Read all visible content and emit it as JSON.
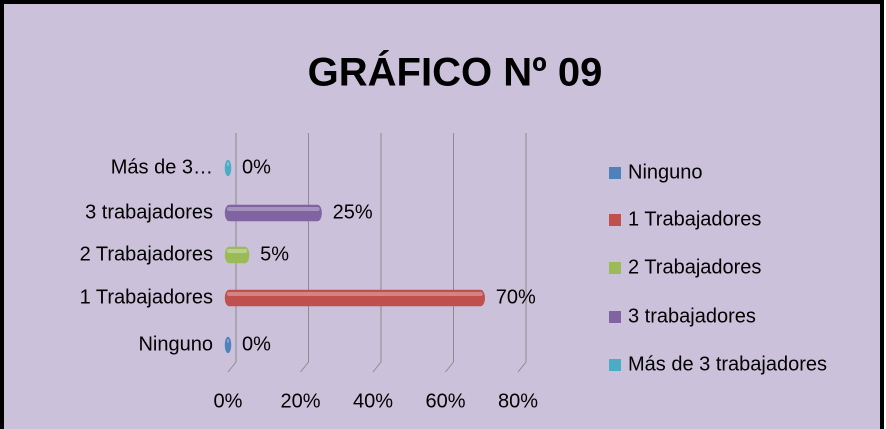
{
  "chart_data": {
    "type": "hbar",
    "title": "GRÁFICO Nº 09",
    "categories": [
      "Ninguno",
      "1 Trabajadores",
      "2 Trabajadores",
      "3 trabajadores",
      "Más de 3…"
    ],
    "values": [
      0,
      70,
      5,
      25,
      0
    ],
    "value_labels": [
      "0%",
      "70%",
      "5%",
      "25%",
      "0%"
    ],
    "colors": [
      "#4f81bd",
      "#c0504d",
      "#9bbb59",
      "#8064a2",
      "#4bacc6"
    ],
    "legend": [
      "Ninguno",
      "1 Trabajadores",
      "2 Trabajadores",
      "3 trabajadores",
      "Más de 3 trabajadores"
    ],
    "xlim": [
      0,
      80
    ],
    "xticks": [
      {
        "value": 0,
        "label": "0%"
      },
      {
        "value": 20,
        "label": "20%"
      },
      {
        "value": 40,
        "label": "40%"
      },
      {
        "value": 60,
        "label": "60%"
      },
      {
        "value": 80,
        "label": "80%"
      }
    ],
    "grid": true
  }
}
